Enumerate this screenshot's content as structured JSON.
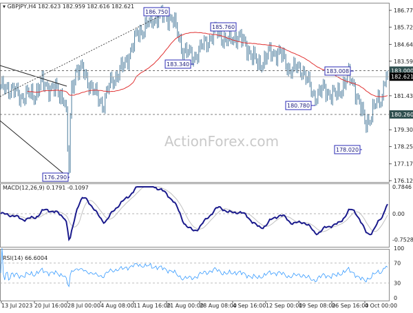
{
  "header": {
    "symbol": "GBPJPY,H4",
    "ohlc": "182.623 182.959 182.616 182.621"
  },
  "watermark": "ActionForex.com",
  "chart_data": [
    {
      "type": "ohlc",
      "title": "GBPJPY,H4 182.623 182.959 182.616 182.621",
      "ylim": [
        176.12,
        186.77
      ],
      "y_ticks": [
        "186.770",
        "185.720",
        "184.640",
        "183.590",
        "181.430",
        "179.300",
        "178.250",
        "177.170",
        "176.120"
      ],
      "levels": [
        {
          "label": "183.000",
          "value": 183.0,
          "style": "dashed"
        },
        {
          "label": "180.260",
          "value": 180.26,
          "style": "dashed"
        },
        {
          "label": "182.621",
          "value": 182.621,
          "style": "current"
        }
      ],
      "annotations": [
        {
          "label": "186.750",
          "value": 186.75
        },
        {
          "label": "185.760",
          "value": 185.76
        },
        {
          "label": "183.340",
          "value": 183.34
        },
        {
          "label": "183.008",
          "value": 183.008
        },
        {
          "label": "180.780",
          "value": 180.78
        },
        {
          "label": "178.020",
          "value": 178.02
        },
        {
          "label": "176.290",
          "value": 176.29
        }
      ],
      "x_ticks": [
        "13 Jul 2023",
        "20 Jul 16:00",
        "28 Jul 00:00",
        "4 Aug 08:00",
        "11 Aug 16:00",
        "21 Aug 00:00",
        "28 Aug 08:00",
        "4 Sep 16:00",
        "12 Sep 00:00",
        "19 Sep 08:00",
        "26 Sep 16:00",
        "4 Oct 00:00"
      ],
      "close_path": [
        181.8,
        182.0,
        181.4,
        181.5,
        182.2,
        181.8,
        181.2,
        176.4,
        181.5,
        183.1,
        183.0,
        181.4,
        180.9,
        182.2,
        183.3,
        185.3,
        186.1,
        186.5,
        186.3,
        184.4,
        183.8,
        184.8,
        185.5,
        184.8,
        185.2,
        184.4,
        183.3,
        184.0,
        184.2,
        183.1,
        183.1,
        181.4,
        181.8,
        181.4,
        182.7,
        182.0,
        180.5,
        179.7,
        179.9,
        180.8,
        181.4,
        182.9,
        182.621
      ],
      "ma_color": "#e03030",
      "bar_color": "#4a7b9c"
    },
    {
      "type": "line",
      "title": "MACD(12,26,9) 0.1791 -0.1097",
      "ylim": [
        -0.7528,
        0.7846
      ],
      "y_ticks": [
        "0.7846",
        "0.00",
        "-0.7528"
      ],
      "series_colors": [
        "#1a1a8c",
        "#c0c0c0"
      ]
    },
    {
      "type": "line",
      "title": "RSI(14) 66.6004",
      "ylim": [
        0,
        100
      ],
      "y_ticks": [
        "100",
        "70",
        "30",
        "0"
      ],
      "color": "#3399ff"
    }
  ]
}
